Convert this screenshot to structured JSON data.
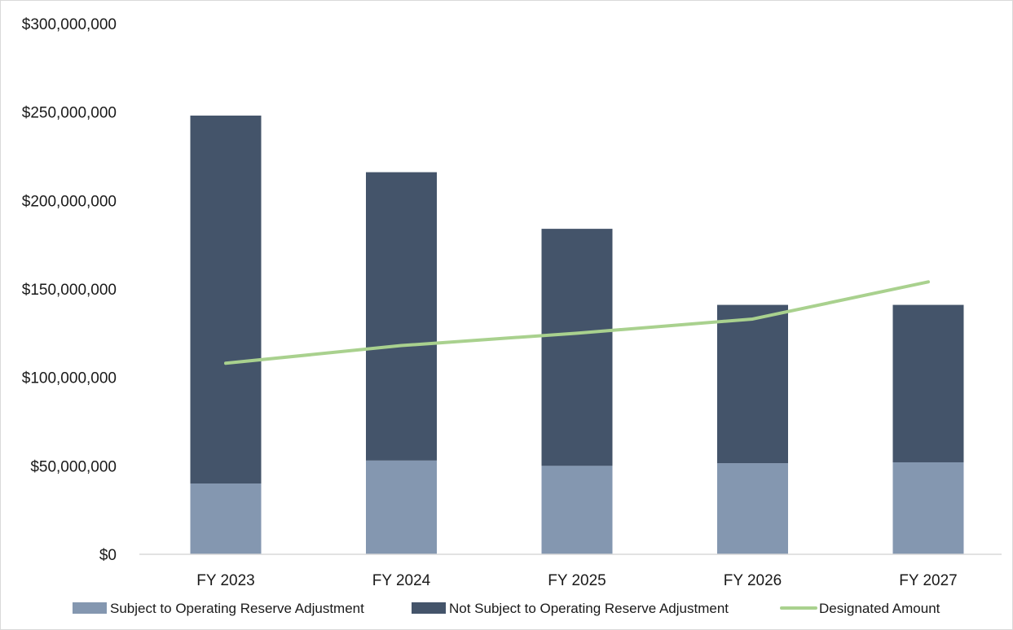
{
  "chart_data": {
    "type": "bar",
    "stacked": true,
    "categories": [
      "FY 2023",
      "FY 2024",
      "FY 2025",
      "FY 2026",
      "FY 2027"
    ],
    "series": [
      {
        "name": "Subject to Operating Reserve Adjustment",
        "kind": "bar",
        "color": "#8497b0",
        "values": [
          40000000,
          53000000,
          50000000,
          51500000,
          52000000
        ]
      },
      {
        "name": "Not Subject to Operating Reserve Adjustment",
        "kind": "bar",
        "color": "#44546a",
        "values": [
          208000000,
          163000000,
          134000000,
          89500000,
          89000000
        ]
      },
      {
        "name": "Designated Amount",
        "kind": "line",
        "color": "#a9d18e",
        "values": [
          108000000,
          118000000,
          125000000,
          133000000,
          154000000
        ]
      }
    ],
    "ylim": [
      0,
      300000000
    ],
    "yticks": [
      0,
      50000000,
      100000000,
      150000000,
      200000000,
      250000000,
      300000000
    ],
    "ytick_labels": [
      "$0",
      "$50,000,000",
      "$100,000,000",
      "$150,000,000",
      "$200,000,000",
      "$250,000,000",
      "$300,000,000"
    ],
    "grid": false,
    "legend_position": "bottom"
  }
}
